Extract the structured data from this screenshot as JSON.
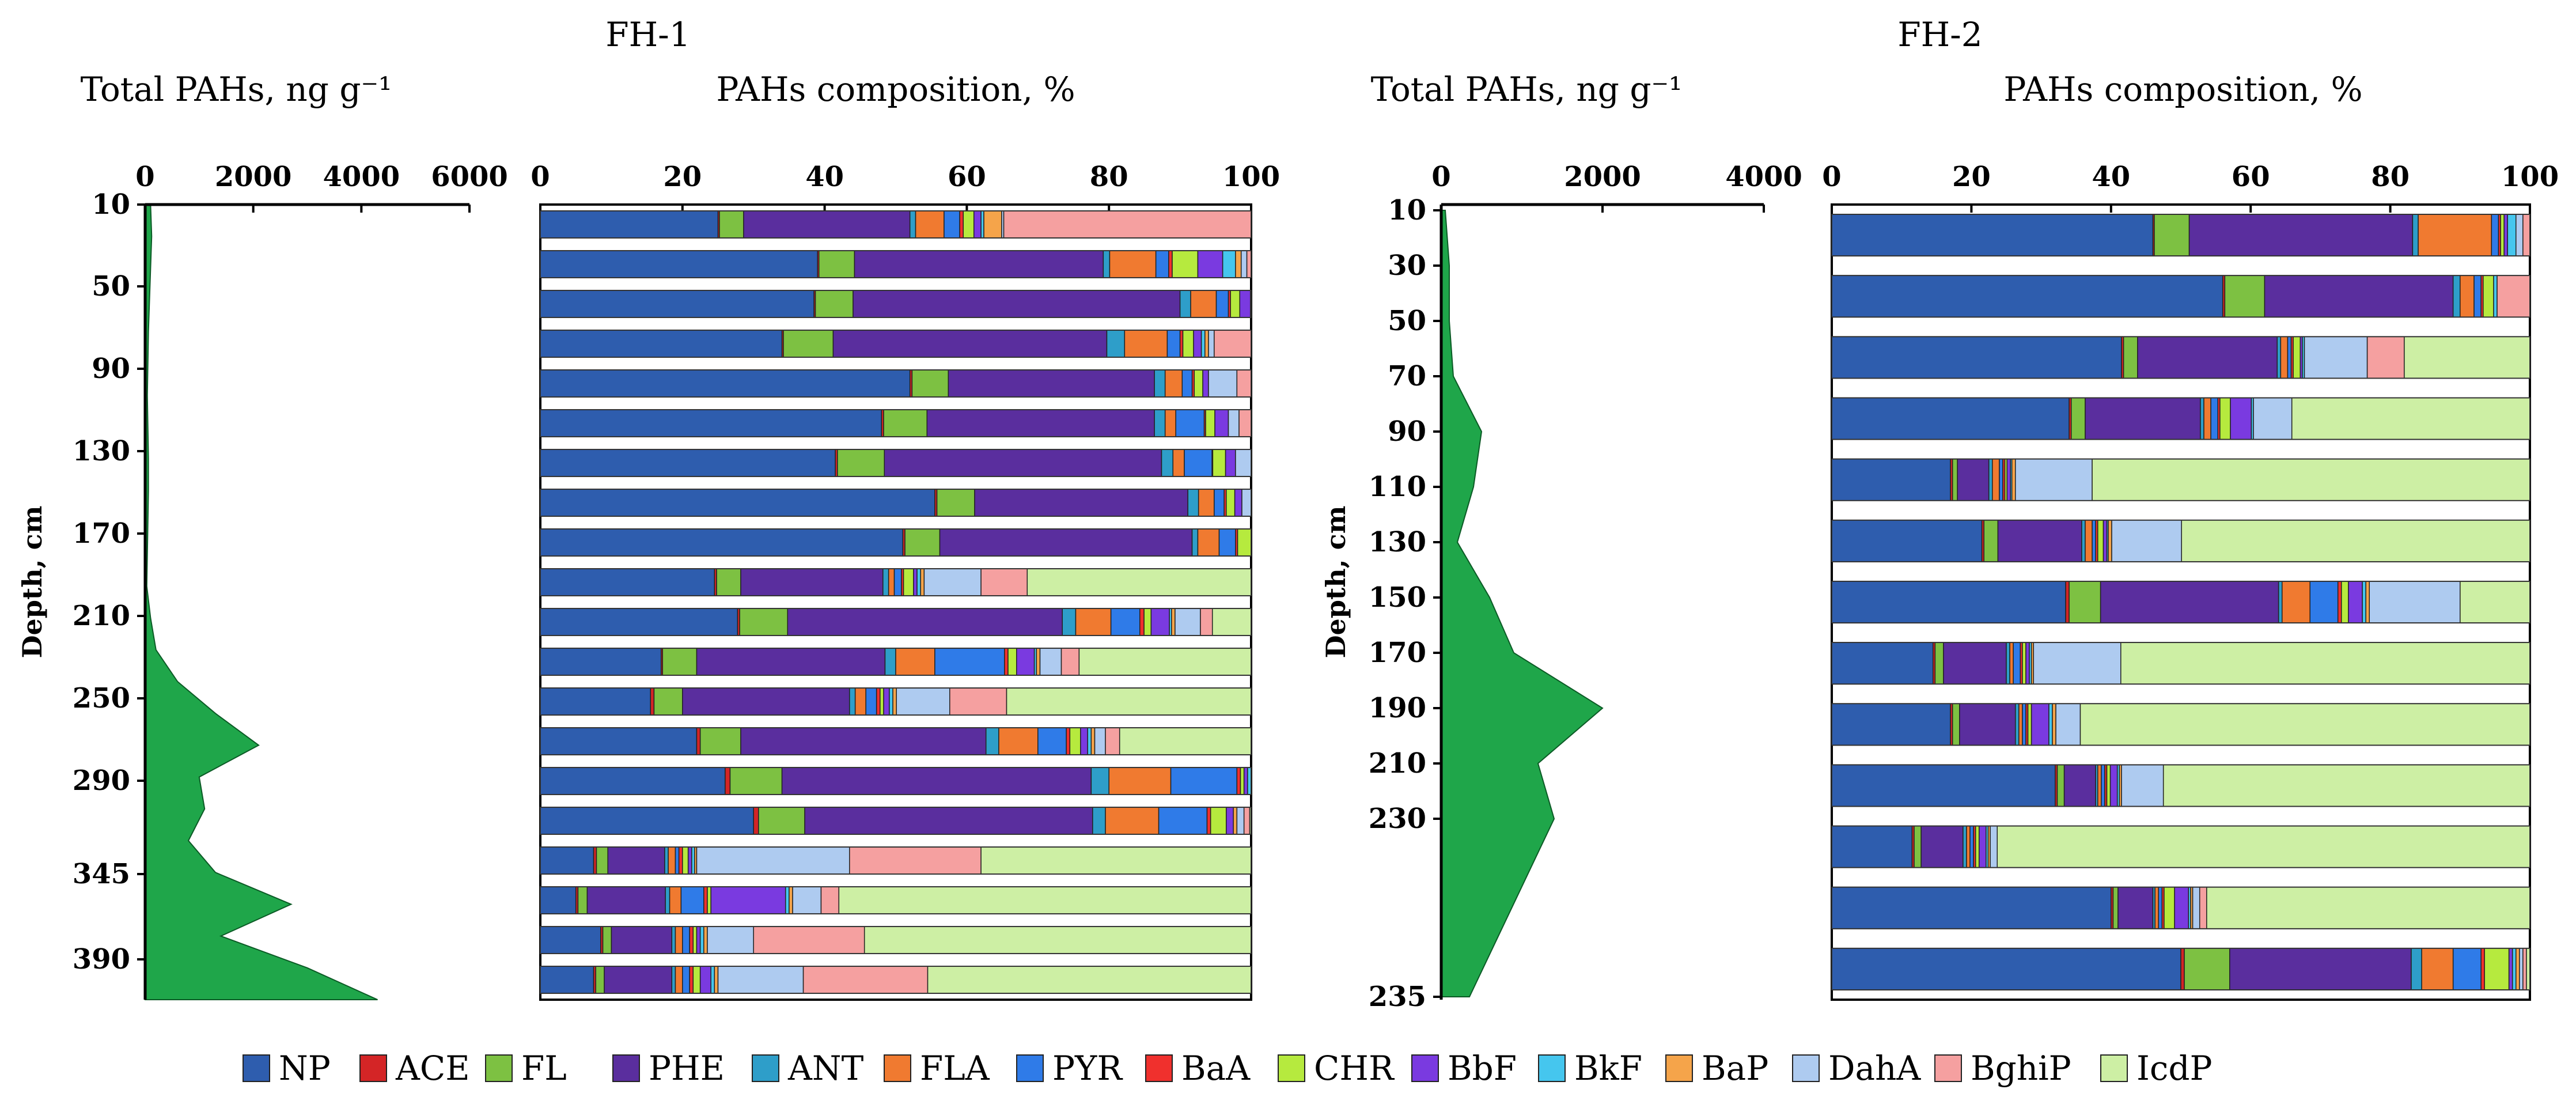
{
  "legend": [
    "NP",
    "ACE",
    "FL",
    "PHE",
    "ANT",
    "FLA",
    "PYR",
    "BaA",
    "CHR",
    "BbF",
    "BkF",
    "BaP",
    "DahA",
    "BghiP",
    "IcdP"
  ],
  "colors": {
    "NP": "#2E5DAE",
    "ACE": "#D42526",
    "FL": "#7DC142",
    "PHE": "#5A2E9E",
    "ANT": "#2E9EC9",
    "FLA": "#F07A30",
    "PYR": "#2F7BE8",
    "BaA": "#F0302D",
    "CHR": "#B6EA3E",
    "BbF": "#7A3AE0",
    "BkF": "#45C6EE",
    "BaP": "#F5A44A",
    "DahA": "#AECBF0",
    "BghiP": "#F5A0A0",
    "IcdP": "#CDEFA4",
    "area": "#1FA64A"
  },
  "panels": {
    "fh1": {
      "site_label": "FH-1",
      "total": {
        "title": "Total PAHs, ng g⁻¹",
        "ylabel": "Depth, cm",
        "xticks": [
          "0",
          "2000",
          "4000",
          "6000"
        ],
        "yticks": [
          "10",
          "50",
          "90",
          "130",
          "170",
          "210",
          "250",
          "290",
          "345",
          "390"
        ]
      },
      "comp": {
        "title": "PAHs composition, %",
        "xticks": [
          "0",
          "20",
          "40",
          "60",
          "80",
          "100"
        ]
      }
    },
    "fh2": {
      "site_label": "FH-2",
      "total": {
        "title": "Total PAHs, ng g⁻¹",
        "ylabel": "Depth, cm",
        "xticks": [
          "0",
          "2000",
          "4000"
        ],
        "yticks": [
          "10",
          "30",
          "50",
          "70",
          "90",
          "110",
          "130",
          "150",
          "170",
          "190",
          "210",
          "230",
          "235"
        ]
      },
      "comp": {
        "title": "PAHs composition, %",
        "xticks": [
          "0",
          "20",
          "40",
          "60",
          "80",
          "100"
        ]
      }
    }
  },
  "chart_data": [
    {
      "type": "area",
      "title": "FH-1 Total PAHs, ng g⁻¹",
      "ylabel": "Depth, cm",
      "xlim": [
        0,
        6000
      ],
      "depth_ticks": [
        "10",
        "50",
        "90",
        "130",
        "170",
        "210",
        "250",
        "290",
        "345",
        "390"
      ],
      "profile": [
        [
          0,
          100
        ],
        [
          1,
          120
        ],
        [
          2,
          100
        ],
        [
          3,
          80
        ],
        [
          4,
          60
        ],
        [
          5,
          50
        ],
        [
          6,
          40
        ],
        [
          7,
          50
        ],
        [
          8,
          60
        ],
        [
          9,
          60
        ],
        [
          10,
          50
        ],
        [
          11,
          40
        ],
        [
          12,
          30
        ],
        [
          13,
          100
        ],
        [
          14,
          200
        ],
        [
          15,
          600
        ],
        [
          16,
          1300
        ],
        [
          17,
          2100
        ],
        [
          18,
          1000
        ],
        [
          19,
          1100
        ],
        [
          20,
          800
        ],
        [
          21,
          1300
        ],
        [
          22,
          2700
        ],
        [
          23,
          1400
        ],
        [
          24,
          3000
        ],
        [
          25,
          4300
        ]
      ]
    },
    {
      "type": "bar",
      "stacked": true,
      "orientation": "horizontal",
      "title": "FH-1 PAHs composition, %",
      "xlim": [
        0,
        100
      ],
      "series_names": [
        "NP",
        "ACE",
        "FL",
        "PHE",
        "ANT",
        "FLA",
        "PYR",
        "BaA",
        "CHR",
        "BbF",
        "BkF",
        "BaP",
        "DahA",
        "BghiP",
        "IcdP"
      ],
      "rows": [
        [
          25.0,
          0.2,
          3.4,
          23.4,
          0.8,
          4.0,
          2.2,
          0.5,
          1.5,
          1.0,
          0.4,
          2.5,
          0.3,
          34.8,
          0.0
        ],
        [
          39.0,
          0.2,
          5.0,
          35.0,
          0.9,
          6.5,
          1.8,
          0.5,
          3.6,
          3.5,
          1.8,
          0.8,
          0.8,
          0.6,
          0.0
        ],
        [
          38.5,
          0.2,
          5.3,
          46.0,
          1.5,
          3.6,
          1.7,
          0.3,
          1.3,
          1.5,
          0.1,
          0.0,
          0.0,
          0.0,
          0.0
        ],
        [
          34.0,
          0.2,
          7.0,
          38.5,
          2.5,
          6.0,
          1.8,
          0.4,
          1.5,
          1.1,
          0.5,
          0.5,
          0.8,
          5.2,
          0.0
        ],
        [
          52.0,
          0.3,
          5.1,
          29.0,
          1.5,
          2.4,
          1.4,
          0.3,
          1.2,
          0.8,
          0.0,
          0.0,
          4.0,
          2.0,
          0.0
        ],
        [
          48.0,
          0.3,
          6.1,
          32.0,
          1.5,
          1.5,
          4.0,
          0.2,
          1.3,
          1.9,
          0.0,
          0.0,
          1.5,
          1.7,
          0.0
        ],
        [
          41.5,
          0.3,
          6.6,
          39.0,
          1.6,
          1.6,
          3.9,
          0.1,
          1.8,
          1.4,
          0.0,
          0.0,
          2.2,
          0.0,
          0.0
        ],
        [
          55.5,
          0.3,
          5.3,
          30.0,
          1.5,
          2.2,
          1.4,
          0.3,
          1.2,
          1.0,
          0.0,
          0.0,
          1.3,
          0.0,
          0.0
        ],
        [
          51.0,
          0.3,
          4.9,
          35.5,
          0.8,
          3.0,
          2.3,
          0.3,
          1.9,
          0.0,
          0.0,
          0.0,
          0.0,
          0.0,
          0.0
        ],
        [
          24.5,
          0.3,
          3.4,
          20.0,
          0.8,
          0.8,
          1.0,
          0.3,
          1.4,
          0.5,
          0.5,
          0.5,
          8.0,
          6.5,
          31.5
        ],
        [
          28.0,
          0.3,
          6.8,
          39.0,
          1.9,
          5.0,
          4.1,
          0.6,
          1.0,
          2.6,
          0.3,
          0.5,
          3.6,
          1.7,
          5.5
        ],
        [
          17.0,
          0.2,
          4.8,
          26.5,
          1.5,
          5.5,
          9.8,
          0.5,
          1.2,
          2.5,
          0.3,
          0.5,
          3.0,
          2.5,
          24.2
        ],
        [
          15.5,
          0.5,
          4.0,
          23.5,
          0.8,
          1.5,
          1.5,
          0.5,
          0.5,
          0.8,
          0.5,
          0.5,
          7.5,
          8.0,
          34.4
        ],
        [
          22.0,
          0.5,
          5.7,
          34.5,
          1.8,
          5.5,
          4.0,
          0.5,
          1.5,
          1.0,
          0.5,
          0.5,
          1.5,
          2.0,
          18.5
        ],
        [
          26.0,
          0.7,
          7.3,
          43.5,
          2.5,
          8.7,
          9.3,
          0.5,
          0.5,
          0.5,
          0.5,
          0.0,
          0.0,
          0.0,
          0.0
        ],
        [
          30.0,
          0.7,
          6.5,
          40.5,
          1.8,
          7.5,
          6.8,
          0.5,
          2.2,
          1.0,
          0.0,
          0.5,
          1.0,
          0.8,
          0.2
        ],
        [
          7.5,
          0.4,
          1.6,
          8.0,
          0.5,
          1.0,
          0.5,
          0.5,
          0.8,
          0.5,
          0.4,
          0.3,
          21.5,
          18.5,
          38.0
        ],
        [
          5.0,
          0.3,
          1.3,
          11.0,
          0.6,
          1.6,
          3.2,
          0.5,
          0.5,
          10.5,
          0.5,
          0.5,
          4.0,
          2.5,
          58.0
        ],
        [
          8.5,
          0.3,
          1.2,
          8.5,
          0.5,
          1.0,
          1.0,
          0.5,
          0.5,
          0.5,
          0.5,
          0.5,
          6.5,
          15.6,
          54.4
        ],
        [
          7.5,
          0.3,
          1.2,
          9.5,
          0.5,
          1.0,
          1.0,
          0.5,
          1.0,
          1.5,
          0.5,
          0.5,
          12.0,
          17.5,
          45.5
        ]
      ]
    },
    {
      "type": "area",
      "title": "FH-2 Total PAHs, ng g⁻¹",
      "ylabel": "Depth, cm",
      "xlim": [
        0,
        4000
      ],
      "depth_ticks": [
        "10",
        "30",
        "50",
        "70",
        "90",
        "110",
        "130",
        "150",
        "170",
        "190",
        "210",
        "230",
        "235"
      ],
      "profile": [
        [
          10,
          50
        ],
        [
          30,
          100
        ],
        [
          50,
          100
        ],
        [
          70,
          150
        ],
        [
          90,
          500
        ],
        [
          110,
          400
        ],
        [
          130,
          200
        ],
        [
          150,
          600
        ],
        [
          170,
          900
        ],
        [
          190,
          2000
        ],
        [
          210,
          1200
        ],
        [
          230,
          1400
        ],
        [
          235,
          350
        ]
      ]
    },
    {
      "type": "bar",
      "stacked": true,
      "orientation": "horizontal",
      "title": "FH-2 PAHs composition, %",
      "xlim": [
        0,
        100
      ],
      "series_names": [
        "NP",
        "ACE",
        "FL",
        "PHE",
        "ANT",
        "FLA",
        "PYR",
        "BaA",
        "CHR",
        "BbF",
        "BkF",
        "BaP",
        "DahA",
        "BghiP",
        "IcdP"
      ],
      "rows": [
        [
          46.0,
          0.2,
          5.0,
          32.0,
          0.8,
          10.5,
          1.0,
          0.3,
          0.5,
          0.5,
          1.2,
          0.0,
          1.0,
          1.0,
          0.0
        ],
        [
          56.0,
          0.3,
          5.7,
          27.0,
          1.0,
          2.0,
          1.0,
          0.3,
          1.5,
          0.0,
          0.5,
          0.0,
          0.0,
          4.7,
          0.0
        ],
        [
          41.5,
          0.3,
          2.0,
          20.0,
          0.5,
          1.0,
          0.5,
          0.3,
          1.0,
          0.3,
          0.3,
          0.0,
          9.0,
          5.3,
          18.0
        ],
        [
          34.0,
          0.3,
          2.0,
          16.5,
          0.5,
          1.0,
          1.0,
          0.3,
          1.5,
          3.0,
          0.3,
          0.0,
          5.5,
          0.0,
          34.1
        ],
        [
          17.0,
          0.3,
          0.7,
          4.5,
          0.5,
          1.0,
          0.5,
          0.3,
          0.3,
          0.5,
          0.2,
          0.5,
          11.0,
          0.0,
          62.7
        ],
        [
          21.5,
          0.3,
          2.0,
          12.0,
          0.5,
          1.0,
          0.5,
          0.3,
          0.8,
          0.5,
          0.2,
          0.5,
          10.0,
          0.0,
          49.9
        ],
        [
          33.5,
          0.5,
          4.5,
          25.5,
          0.5,
          4.0,
          4.0,
          0.5,
          1.0,
          2.0,
          0.5,
          0.5,
          13.0,
          0.0,
          10.0
        ],
        [
          14.5,
          0.3,
          1.2,
          9.0,
          0.5,
          0.5,
          1.0,
          0.3,
          0.5,
          0.5,
          0.3,
          0.3,
          12.5,
          0.0,
          58.6
        ],
        [
          17.0,
          0.3,
          1.0,
          8.0,
          0.5,
          0.5,
          0.5,
          0.3,
          0.5,
          2.5,
          0.5,
          0.5,
          3.5,
          0.0,
          64.4
        ],
        [
          32.0,
          0.3,
          1.0,
          4.5,
          0.3,
          0.5,
          0.5,
          0.3,
          0.5,
          1.0,
          0.3,
          0.3,
          6.0,
          0.0,
          52.5
        ],
        [
          11.5,
          0.3,
          1.0,
          6.0,
          0.5,
          0.5,
          0.5,
          0.3,
          0.5,
          1.0,
          0.3,
          0.3,
          1.0,
          0.0,
          76.3
        ],
        [
          40.0,
          0.3,
          0.7,
          5.0,
          0.3,
          0.5,
          0.5,
          0.3,
          1.5,
          2.0,
          0.3,
          0.3,
          1.0,
          1.0,
          46.3
        ],
        [
          50.0,
          0.5,
          6.5,
          26.0,
          1.5,
          4.5,
          4.0,
          0.5,
          3.5,
          0.5,
          0.5,
          0.5,
          0.5,
          0.5,
          0.5
        ]
      ]
    }
  ]
}
